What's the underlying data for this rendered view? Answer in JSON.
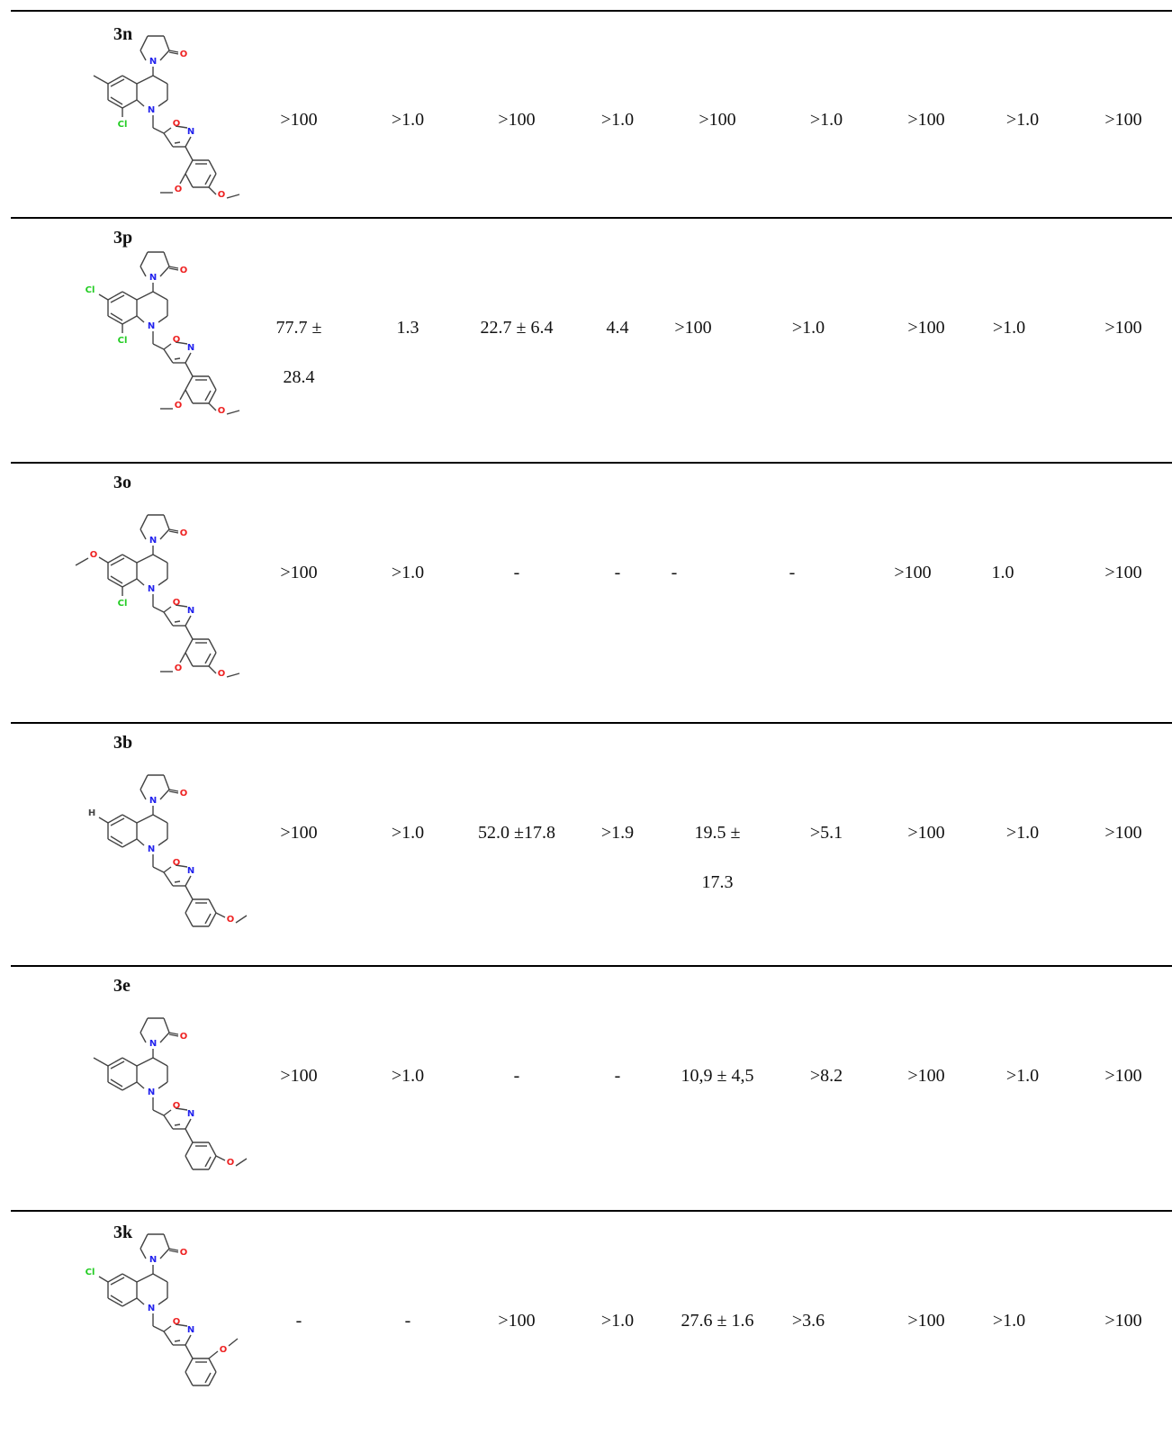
{
  "table": {
    "rows": [
      {
        "compound": "3n",
        "substituents": {
          "r6": "methyl",
          "r8": "Cl",
          "aryl": "3,4-dimethoxy"
        },
        "cells": [
          ">100",
          ">1.0",
          ">100",
          ">1.0",
          ">100",
          ">1.0",
          ">100",
          ">1.0",
          ">100"
        ],
        "cells_line2": [
          "",
          "",
          "",
          "",
          "",
          "",
          "",
          "",
          ""
        ]
      },
      {
        "compound": "3p",
        "substituents": {
          "r6": "Cl",
          "r8": "Cl",
          "aryl": "3,4-dimethoxy"
        },
        "cells": [
          "77.7 ±",
          "1.3",
          "22.7 ± 6.4",
          "4.4",
          ">100",
          ">1.0",
          ">100",
          ">1.0",
          ">100"
        ],
        "cells_line2": [
          "28.4",
          "",
          "",
          "",
          "",
          "",
          "",
          "",
          ""
        ]
      },
      {
        "compound": "3o",
        "substituents": {
          "r6": "methoxy",
          "r8": "Cl",
          "aryl": "3,4-dimethoxy"
        },
        "cells": [
          ">100",
          ">1.0",
          "-",
          "-",
          "-",
          "-",
          ">100",
          "1.0",
          ">100"
        ],
        "cells_line2": [
          "",
          "",
          "",
          "",
          "",
          "",
          "",
          "",
          ""
        ]
      },
      {
        "compound": "3b",
        "substituents": {
          "r6": "H",
          "r8": "",
          "aryl": "4-methoxy"
        },
        "cells": [
          ">100",
          ">1.0",
          "52.0 ±17.8",
          ">1.9",
          "19.5 ±",
          ">5.1",
          ">100",
          ">1.0",
          ">100"
        ],
        "cells_line2": [
          "",
          "",
          "",
          "",
          "17.3",
          "",
          "",
          "",
          ""
        ]
      },
      {
        "compound": "3e",
        "substituents": {
          "r6": "methyl",
          "r8": "",
          "aryl": "4-methoxy"
        },
        "cells": [
          ">100",
          ">1.0",
          "-",
          "-",
          "10,9 ± 4,5",
          ">8.2",
          ">100",
          ">1.0",
          ">100"
        ],
        "cells_line2": [
          "",
          "",
          "",
          "",
          "",
          "",
          "",
          "",
          ""
        ]
      },
      {
        "compound": "3k",
        "substituents": {
          "r6": "Cl",
          "r8": "",
          "aryl": "3-methoxy"
        },
        "cells": [
          "-",
          "-",
          ">100",
          ">1.0",
          "27.6 ± 1.6",
          ">3.6",
          ">100",
          ">1.0",
          ">100"
        ],
        "cells_line2": [
          "",
          "",
          "",
          "",
          "",
          "",
          "",
          "",
          ""
        ]
      }
    ],
    "atom_labels": {
      "N": "N",
      "O": "O",
      "Cl": "Cl",
      "H": "H"
    },
    "colors": {
      "nitrogen": "#2222ee",
      "oxygen": "#ee2222",
      "chlorine": "#22cc22",
      "bond": "#444444",
      "rule": "#000000"
    }
  }
}
